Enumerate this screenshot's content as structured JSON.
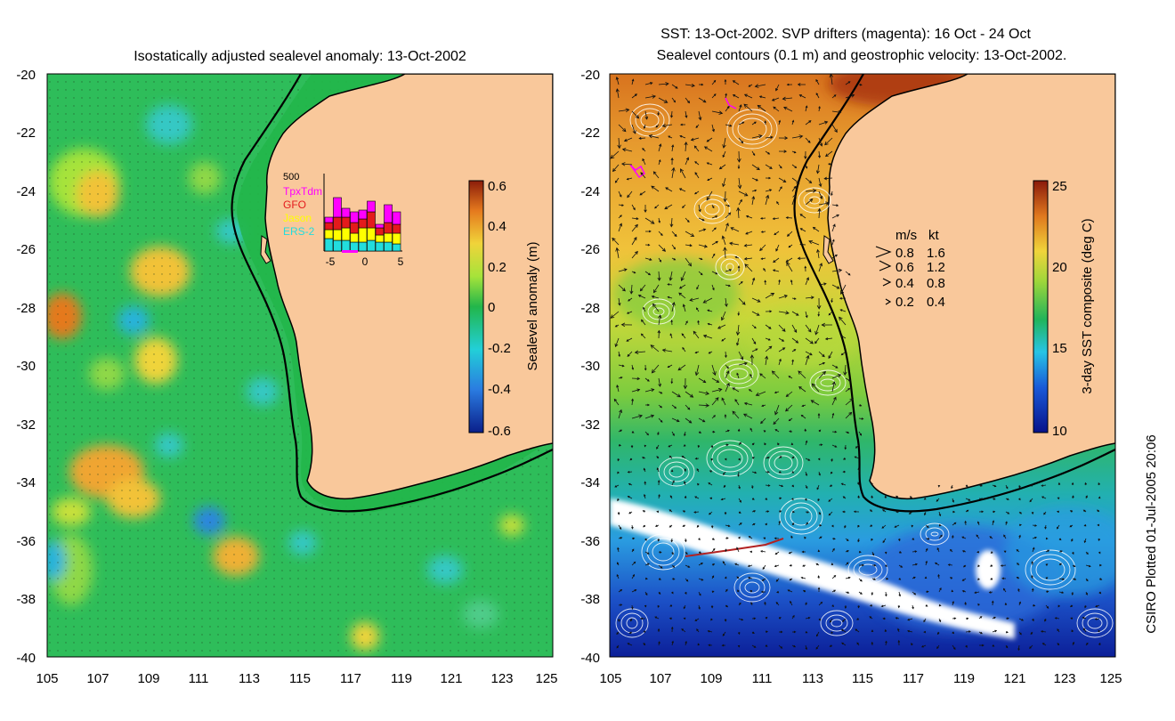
{
  "left_panel": {
    "title": "Isostatically adjusted sealevel anomaly: 13-Oct-2002",
    "colorbar": {
      "label": "Sealevel anomaly (m)",
      "ticks": [
        "0.6",
        "0.4",
        "0.2",
        "0",
        "-0.2",
        "-0.4",
        "-0.6"
      ]
    },
    "inset": {
      "ymax_label": "500",
      "xticks": [
        "-5",
        "0",
        "5"
      ],
      "legend": [
        {
          "name": "TpxTdm",
          "color": "#ff00ff"
        },
        {
          "name": "GFO",
          "color": "#e41a1c"
        },
        {
          "name": "Jason",
          "color": "#ffff00"
        },
        {
          "name": "ERS-2",
          "color": "#22dddd"
        }
      ]
    }
  },
  "right_panel": {
    "title_line1": "SST: 13-Oct-2002. SVP drifters (magenta): 16 Oct - 24 Oct",
    "title_line2": "Sealevel contours (0.1 m) and geostrophic velocity: 13-Oct-2002.",
    "colorbar": {
      "label": "3-day SST composite (deg C)",
      "ticks": [
        "25",
        "20",
        "15",
        "10"
      ]
    },
    "velocity_legend": {
      "header_ms": "m/s",
      "header_kt": "kt",
      "rows": [
        {
          "ms": "0.8",
          "kt": "1.6"
        },
        {
          "ms": "0.6",
          "kt": "1.2"
        },
        {
          "ms": "0.4",
          "kt": "0.8"
        },
        {
          "ms": "0.2",
          "kt": "0.4"
        }
      ]
    }
  },
  "axes": {
    "y_ticks": [
      "-20",
      "-22",
      "-24",
      "-26",
      "-28",
      "-30",
      "-32",
      "-34",
      "-36",
      "-38",
      "-40"
    ],
    "x_ticks": [
      "105",
      "107",
      "109",
      "111",
      "113",
      "115",
      "117",
      "119",
      "121",
      "123",
      "125"
    ]
  },
  "credit": "CSIRO Plotted 01-Jul-2005 20:06",
  "colors": {
    "land": "#f9c89b",
    "coast": "#000000"
  }
}
